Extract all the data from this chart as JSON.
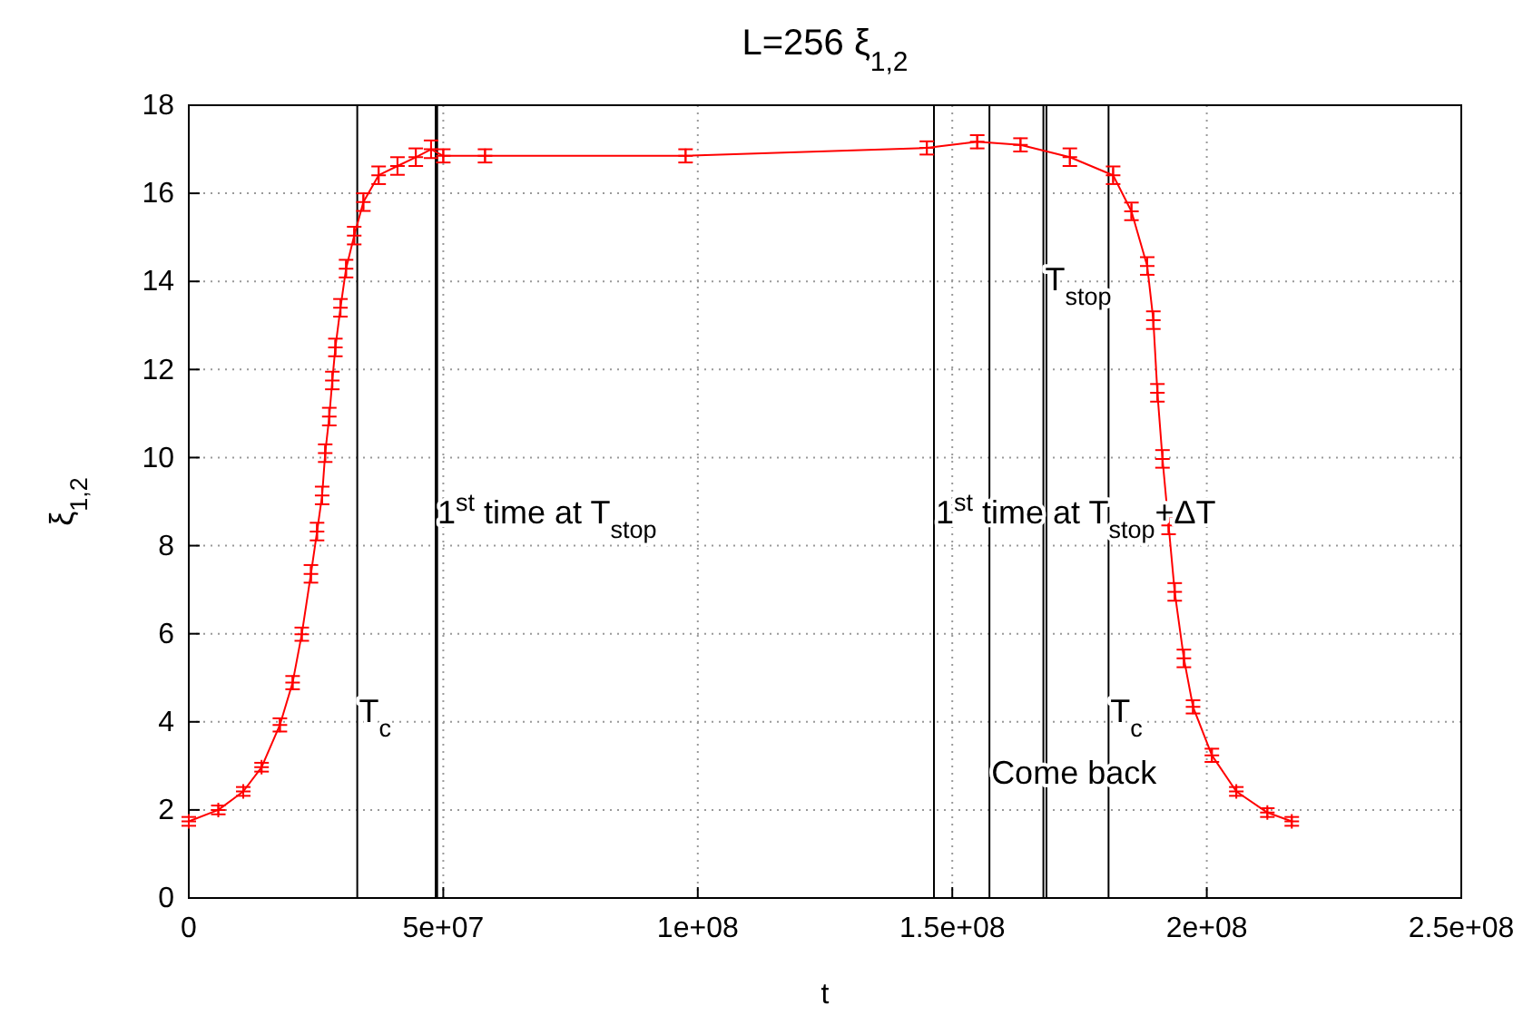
{
  "chart_data": {
    "type": "line",
    "title": "L=256 ξ$_{1,2}$",
    "xlabel": "t",
    "ylabel": "ξ$_{1,2}$",
    "x": [
      0,
      5800000,
      10700000,
      14300000,
      17900000,
      20400000,
      22200000,
      24000000,
      25200000,
      26200000,
      26800000,
      27600000,
      28200000,
      28800000,
      29800000,
      30900000,
      32500000,
      34300000,
      37300000,
      41000000,
      44600000,
      47600000,
      50000000,
      58200000,
      97600000,
      145000000,
      154900000,
      163400000,
      173100000,
      181600000,
      185200000,
      188300000,
      189500000,
      190300000,
      191300000,
      192500000,
      193700000,
      195500000,
      197300000,
      201000000,
      205800000,
      211900000,
      216700000
    ],
    "series": [
      {
        "color": "#ff0000",
        "values": [
          1.74,
          2.0,
          2.42,
          2.97,
          3.93,
          4.89,
          5.99,
          7.36,
          8.32,
          9.14,
          10.1,
          10.93,
          11.75,
          12.5,
          13.4,
          14.29,
          15.04,
          15.8,
          16.41,
          16.62,
          16.82,
          17.0,
          16.85,
          16.85,
          16.85,
          17.03,
          17.17,
          17.1,
          16.82,
          16.41,
          15.59,
          14.35,
          13.12,
          11.47,
          9.97,
          8.46,
          6.95,
          5.44,
          4.34,
          3.24,
          2.42,
          1.94,
          1.74
        ],
        "errors": [
          0.1,
          0.1,
          0.1,
          0.1,
          0.15,
          0.15,
          0.15,
          0.2,
          0.2,
          0.2,
          0.2,
          0.2,
          0.2,
          0.2,
          0.2,
          0.2,
          0.2,
          0.2,
          0.2,
          0.2,
          0.2,
          0.2,
          0.15,
          0.15,
          0.15,
          0.15,
          0.15,
          0.15,
          0.2,
          0.2,
          0.2,
          0.2,
          0.2,
          0.2,
          0.2,
          0.2,
          0.2,
          0.2,
          0.15,
          0.15,
          0.1,
          0.1,
          0.1
        ]
      }
    ],
    "marker": "cross",
    "line_style": "solid",
    "xlim": [
      0,
      250000000
    ],
    "xticks": [
      0,
      {
        "value": 50000000,
        "label": "5e+07"
      },
      {
        "value": 100000000,
        "label": "1e+08"
      },
      {
        "value": 150000000,
        "label": "1.5e+08"
      },
      {
        "value": 200000000,
        "label": "2e+08"
      },
      {
        "value": 250000000,
        "label": "2.5e+08"
      }
    ],
    "ylim": [
      0,
      18
    ],
    "yticks": [
      0,
      2,
      4,
      6,
      8,
      10,
      12,
      14,
      16,
      18
    ],
    "grid": true,
    "ref_lines": [
      {
        "axis": "x",
        "value": 33100000,
        "color": "#000000"
      },
      {
        "axis": "x",
        "value": 48500000,
        "color": "#000000"
      },
      {
        "axis": "x",
        "value": 48800000,
        "color": "#000000"
      },
      {
        "axis": "x",
        "value": 146400000,
        "color": "#000000"
      },
      {
        "axis": "x",
        "value": 157300000,
        "color": "#000000"
      },
      {
        "axis": "x",
        "value": 167900000,
        "color": "#000000"
      },
      {
        "axis": "x",
        "value": 168500000,
        "color": "#000000"
      },
      {
        "axis": "x",
        "value": 180700000,
        "color": "#000000"
      }
    ],
    "annotations": [
      {
        "text": "T$_{c}$",
        "x": 33100000,
        "y": 4
      },
      {
        "text": "1$^{st}$ time at T$_{stop}$",
        "x": 48500000,
        "y": 8.5
      },
      {
        "text": "1$^{st}$ time at T$_{stop}$+ΔT",
        "x": 146400000,
        "y": 8.5
      },
      {
        "text": "T$_{stop}$",
        "x": 167900000,
        "y": 13.8
      },
      {
        "text": "T$_{c}$",
        "x": 180700000,
        "y": 4
      },
      {
        "text": "Come back",
        "x": 157300000,
        "y": 2.6
      }
    ]
  }
}
